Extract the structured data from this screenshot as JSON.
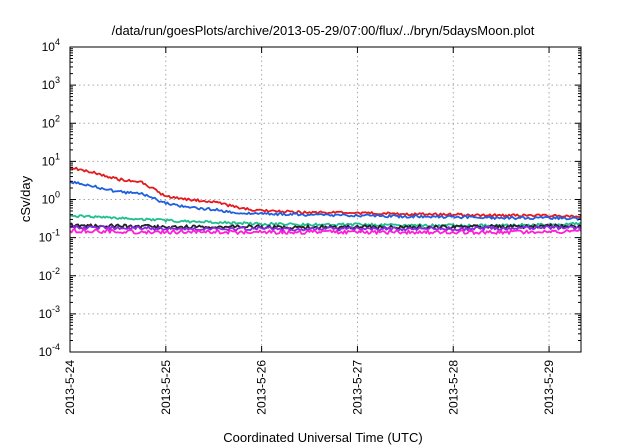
{
  "chart_data": {
    "type": "line",
    "title": "/data/run/goesPlots/archive/2013-05-29/07:00/flux/../bryn/5daysMoon.plot",
    "xlabel": "Coordinated Universal Time (UTC)",
    "ylabel": "cSv/day",
    "yscale": "log",
    "ylim": [
      0.0001,
      10000
    ],
    "xlim": [
      "2013-05-24",
      "2013-05-29 08:00"
    ],
    "x_ticks": [
      "2013-5-24",
      "2013-5-25",
      "2013-5-26",
      "2013-5-27",
      "2013-5-28",
      "2013-5-29"
    ],
    "y_ticks": [
      {
        "base": "10",
        "exp": "-4"
      },
      {
        "base": "10",
        "exp": "-3"
      },
      {
        "base": "10",
        "exp": "-2"
      },
      {
        "base": "10",
        "exp": "-1"
      },
      {
        "base": "10",
        "exp": "0"
      },
      {
        "base": "10",
        "exp": "1"
      },
      {
        "base": "10",
        "exp": "2"
      },
      {
        "base": "10",
        "exp": "3"
      },
      {
        "base": "10",
        "exp": "4"
      }
    ],
    "grid": true,
    "legend": "none",
    "series": [
      {
        "color": "#e41a1c",
        "points": [
          [
            "2013-05-24 00:00",
            7.0
          ],
          [
            "2013-05-24 06:00",
            5.0
          ],
          [
            "2013-05-24 12:00",
            3.4
          ],
          [
            "2013-05-24 18:00",
            2.8
          ],
          [
            "2013-05-25 00:00",
            1.2
          ],
          [
            "2013-05-25 06:00",
            1.0
          ],
          [
            "2013-05-25 12:00",
            0.85
          ],
          [
            "2013-05-25 18:00",
            0.62
          ],
          [
            "2013-05-26 00:00",
            0.5
          ],
          [
            "2013-05-26 12:00",
            0.46
          ],
          [
            "2013-05-27 00:00",
            0.44
          ],
          [
            "2013-05-27 12:00",
            0.42
          ],
          [
            "2013-05-28 00:00",
            0.4
          ],
          [
            "2013-05-28 12:00",
            0.38
          ],
          [
            "2013-05-29 00:00",
            0.38
          ],
          [
            "2013-05-29 08:00",
            0.36
          ]
        ]
      },
      {
        "color": "#1f5fe0",
        "points": [
          [
            "2013-05-24 00:00",
            3.0
          ],
          [
            "2013-05-24 06:00",
            2.2
          ],
          [
            "2013-05-24 12:00",
            1.6
          ],
          [
            "2013-05-24 18:00",
            1.4
          ],
          [
            "2013-05-25 00:00",
            0.8
          ],
          [
            "2013-05-25 06:00",
            0.62
          ],
          [
            "2013-05-25 12:00",
            0.55
          ],
          [
            "2013-05-25 18:00",
            0.45
          ],
          [
            "2013-05-26 00:00",
            0.42
          ],
          [
            "2013-05-26 12:00",
            0.4
          ],
          [
            "2013-05-27 00:00",
            0.38
          ],
          [
            "2013-05-27 12:00",
            0.36
          ],
          [
            "2013-05-28 00:00",
            0.35
          ],
          [
            "2013-05-28 12:00",
            0.33
          ],
          [
            "2013-05-29 00:00",
            0.33
          ],
          [
            "2013-05-29 08:00",
            0.31
          ]
        ]
      },
      {
        "color": "#1fbf8f",
        "points": [
          [
            "2013-05-24 00:00",
            0.38
          ],
          [
            "2013-05-24 12:00",
            0.33
          ],
          [
            "2013-05-25 00:00",
            0.28
          ],
          [
            "2013-05-25 12:00",
            0.25
          ],
          [
            "2013-05-26 00:00",
            0.23
          ],
          [
            "2013-05-26 12:00",
            0.22
          ],
          [
            "2013-05-27 00:00",
            0.22
          ],
          [
            "2013-05-27 12:00",
            0.21
          ],
          [
            "2013-05-28 00:00",
            0.21
          ],
          [
            "2013-05-28 12:00",
            0.21
          ],
          [
            "2013-05-29 00:00",
            0.22
          ],
          [
            "2013-05-29 08:00",
            0.24
          ]
        ]
      },
      {
        "color": "#222222",
        "points": [
          [
            "2013-05-24 00:00",
            0.21
          ],
          [
            "2013-05-25 00:00",
            0.19
          ],
          [
            "2013-05-26 00:00",
            0.19
          ],
          [
            "2013-05-27 00:00",
            0.19
          ],
          [
            "2013-05-28 00:00",
            0.19
          ],
          [
            "2013-05-29 00:00",
            0.2
          ],
          [
            "2013-05-29 08:00",
            0.2
          ]
        ]
      },
      {
        "color": "#8a2be2",
        "points": [
          [
            "2013-05-24 00:00",
            0.19
          ],
          [
            "2013-05-25 00:00",
            0.17
          ],
          [
            "2013-05-26 00:00",
            0.17
          ],
          [
            "2013-05-27 00:00",
            0.17
          ],
          [
            "2013-05-28 00:00",
            0.17
          ],
          [
            "2013-05-29 00:00",
            0.18
          ],
          [
            "2013-05-29 08:00",
            0.18
          ]
        ]
      },
      {
        "color": "#ff1fd6",
        "points": [
          [
            "2013-05-24 00:00",
            0.15
          ],
          [
            "2013-05-25 00:00",
            0.14
          ],
          [
            "2013-05-26 00:00",
            0.14
          ],
          [
            "2013-05-27 00:00",
            0.14
          ],
          [
            "2013-05-28 00:00",
            0.14
          ],
          [
            "2013-05-29 00:00",
            0.14
          ],
          [
            "2013-05-29 08:00",
            0.15
          ]
        ]
      }
    ]
  }
}
